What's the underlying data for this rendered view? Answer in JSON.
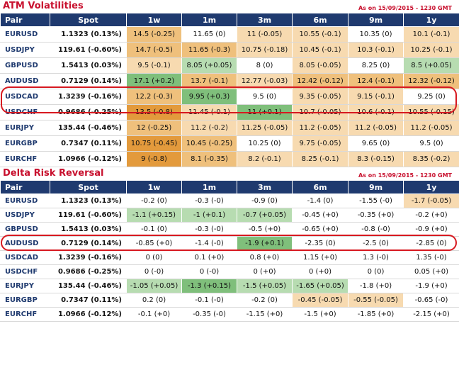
{
  "atm": {
    "title": "ATM Volatilities",
    "asof": "As on 15/09/2015 - 1230 GMT",
    "headers": [
      "Pair",
      "Spot",
      "1w",
      "1m",
      "3m",
      "6m",
      "9m",
      "1y"
    ],
    "rows": [
      {
        "pair": "EURUSD",
        "spot": "1.1323 (0.13%)",
        "cells": [
          "14.5 (-0.25)",
          "11.65 (0)",
          "11 (-0.05)",
          "10.55 (-0.1)",
          "10.35 (0)",
          "10.1 (-0.1)"
        ],
        "bg": [
          "o2",
          "",
          "o3",
          "o3",
          "",
          "o3"
        ]
      },
      {
        "pair": "USDJPY",
        "spot": "119.61 (-0.60%)",
        "cells": [
          "14.7 (-0.5)",
          "11.65 (-0.3)",
          "10.75 (-0.18)",
          "10.45 (-0.1)",
          "10.3 (-0.1)",
          "10.25 (-0.1)"
        ],
        "bg": [
          "o2",
          "o2",
          "o3",
          "o3",
          "o3",
          "o3"
        ]
      },
      {
        "pair": "GBPUSD",
        "spot": "1.5413 (0.03%)",
        "cells": [
          "9.5 (-0.1)",
          "8.05 (+0.05)",
          "8 (0)",
          "8.05 (-0.05)",
          "8.25 (0)",
          "8.5 (+0.05)"
        ],
        "bg": [
          "o3",
          "g2",
          "",
          "o3",
          "",
          "g2"
        ]
      },
      {
        "pair": "AUDUSD",
        "spot": "0.7129 (0.14%)",
        "cells": [
          "17.1 (+0.2)",
          "13.7 (-0.1)",
          "12.77 (-0.03)",
          "12.42 (-0.12)",
          "12.4 (-0.1)",
          "12.32 (-0.12)"
        ],
        "bg": [
          "g1",
          "o2",
          "o3",
          "o2",
          "o2",
          "o2"
        ]
      },
      {
        "pair": "USDCAD",
        "spot": "1.3239 (-0.16%)",
        "cells": [
          "12.2 (-0.3)",
          "9.95 (+0.3)",
          "9.5 (0)",
          "9.35 (-0.05)",
          "9.15 (-0.1)",
          "9.25 (0)"
        ],
        "bg": [
          "o2",
          "g1",
          "",
          "o3",
          "o3",
          ""
        ]
      },
      {
        "pair": "USDCHF",
        "spot": "0.9686 (-0.25%)",
        "cells": [
          "13.5 (-0.8)",
          "11.45 (-0.1)",
          "11 (+0.1)",
          "10.7 (-0.05)",
          "10.6 (-0.1)",
          "10.55 (-0.15)"
        ],
        "bg": [
          "o1",
          "o3",
          "g1",
          "o3",
          "o3",
          "o3"
        ]
      },
      {
        "pair": "EURJPY",
        "spot": "135.44 (-0.46%)",
        "cells": [
          "12 (-0.25)",
          "11.2 (-0.2)",
          "11.25 (-0.05)",
          "11.2 (-0.05)",
          "11.2 (-0.05)",
          "11.2 (-0.05)"
        ],
        "bg": [
          "o2",
          "o3",
          "o3",
          "o3",
          "o3",
          "o3"
        ]
      },
      {
        "pair": "EURGBP",
        "spot": "0.7347 (0.11%)",
        "cells": [
          "10.75 (-0.45)",
          "10.45 (-0.25)",
          "10.25 (0)",
          "9.75 (-0.05)",
          "9.65 (0)",
          "9.5 (0)"
        ],
        "bg": [
          "o1",
          "o2",
          "",
          "o3",
          "",
          ""
        ]
      },
      {
        "pair": "EURCHF",
        "spot": "1.0966 (-0.12%)",
        "cells": [
          "9 (-0.8)",
          "8.1 (-0.35)",
          "8.2 (-0.1)",
          "8.25 (-0.1)",
          "8.3 (-0.15)",
          "8.35 (-0.2)"
        ],
        "bg": [
          "o1",
          "o2",
          "o3",
          "o3",
          "o3",
          "o3"
        ]
      }
    ]
  },
  "rr": {
    "title": "Delta Risk Reversal",
    "asof": "As on 15/09/2015 - 1230 GMT",
    "headers": [
      "Pair",
      "Spot",
      "1w",
      "1m",
      "3m",
      "6m",
      "9m",
      "1y"
    ],
    "rows": [
      {
        "pair": "EURUSD",
        "spot": "1.1323 (0.13%)",
        "cells": [
          "-0.2 (0)",
          "-0.3 (-0)",
          "-0.9 (0)",
          "-1.4 (0)",
          "-1.55 (-0)",
          "-1.7 (-0.05)"
        ],
        "bg": [
          "",
          "",
          "",
          "",
          "",
          "o3"
        ]
      },
      {
        "pair": "USDJPY",
        "spot": "119.61 (-0.60%)",
        "cells": [
          "-1.1 (+0.15)",
          "-1 (+0.1)",
          "-0.7 (+0.05)",
          "-0.45 (+0)",
          "-0.35 (+0)",
          "-0.2 (+0)"
        ],
        "bg": [
          "g2",
          "g2",
          "g2",
          "",
          "",
          ""
        ]
      },
      {
        "pair": "GBPUSD",
        "spot": "1.5413 (0.03%)",
        "cells": [
          "-0.1 (0)",
          "-0.3 (-0)",
          "-0.5 (+0)",
          "-0.65 (+0)",
          "-0.8 (-0)",
          "-0.9 (+0)"
        ],
        "bg": [
          "",
          "",
          "",
          "",
          "",
          ""
        ]
      },
      {
        "pair": "AUDUSD",
        "spot": "0.7129 (0.14%)",
        "cells": [
          "-0.85 (+0)",
          "-1.4 (-0)",
          "-1.9 (+0.1)",
          "-2.35 (0)",
          "-2.5 (0)",
          "-2.85 (0)"
        ],
        "bg": [
          "",
          "",
          "g1",
          "",
          "",
          ""
        ]
      },
      {
        "pair": "USDCAD",
        "spot": "1.3239 (-0.16%)",
        "cells": [
          "0 (0)",
          "0.1 (+0)",
          "0.8 (+0)",
          "1.15 (+0)",
          "1.3 (-0)",
          "1.35 (-0)"
        ],
        "bg": [
          "",
          "",
          "",
          "",
          "",
          ""
        ]
      },
      {
        "pair": "USDCHF",
        "spot": "0.9686 (-0.25%)",
        "cells": [
          "0 (-0)",
          "0 (-0)",
          "0 (+0)",
          "0 (+0)",
          "0 (0)",
          "0.05 (+0)"
        ],
        "bg": [
          "",
          "",
          "",
          "",
          "",
          ""
        ]
      },
      {
        "pair": "EURJPY",
        "spot": "135.44 (-0.46%)",
        "cells": [
          "-1.05 (+0.05)",
          "-1.3 (+0.15)",
          "-1.5 (+0.05)",
          "-1.65 (+0.05)",
          "-1.8 (+0)",
          "-1.9 (+0)"
        ],
        "bg": [
          "g2",
          "g1",
          "g2",
          "g2",
          "",
          ""
        ]
      },
      {
        "pair": "EURGBP",
        "spot": "0.7347 (0.11%)",
        "cells": [
          "0.2 (0)",
          "-0.1 (-0)",
          "-0.2 (0)",
          "-0.45 (-0.05)",
          "-0.55 (-0.05)",
          "-0.65 (-0)"
        ],
        "bg": [
          "",
          "",
          "",
          "o3",
          "o3",
          ""
        ]
      },
      {
        "pair": "EURCHF",
        "spot": "1.0966 (-0.12%)",
        "cells": [
          "-0.1 (+0)",
          "-0.35 (-0)",
          "-1.15 (+0)",
          "-1.5 (+0)",
          "-1.85 (+0)",
          "-2.15 (+0)"
        ],
        "bg": [
          "",
          "",
          "",
          "",
          "",
          ""
        ]
      }
    ]
  }
}
